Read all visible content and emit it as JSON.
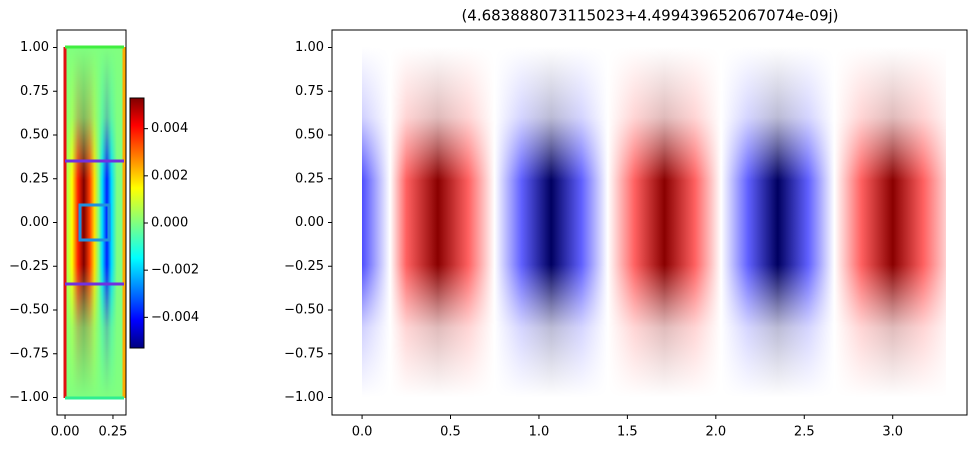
{
  "chart_data": [
    {
      "type": "heatmap",
      "xlim": [
        -0.042,
        0.318
      ],
      "ylim": [
        -1.1,
        1.1
      ],
      "xticks": [
        {
          "value": 0,
          "label": "0.00"
        },
        {
          "value": 0.25,
          "label": "0.25"
        }
      ],
      "yticks": [
        {
          "value": -1,
          "label": "−1.00"
        },
        {
          "value": -0.75,
          "label": "−0.75"
        },
        {
          "value": -0.5,
          "label": "−0.50"
        },
        {
          "value": -0.25,
          "label": "−0.25"
        },
        {
          "value": 0,
          "label": "0.00"
        },
        {
          "value": 0.25,
          "label": "0.25"
        },
        {
          "value": 0.5,
          "label": "0.50"
        },
        {
          "value": 0.75,
          "label": "0.75"
        },
        {
          "value": 1,
          "label": "1.00"
        }
      ],
      "colorbar": {
        "lim": [
          -0.0053,
          0.0053
        ],
        "ticks": [
          {
            "value": -0.004,
            "label": "−0.004"
          },
          {
            "value": -0.002,
            "label": "−0.002"
          },
          {
            "value": 0,
            "label": "0.000"
          },
          {
            "value": 0.002,
            "label": "0.002"
          },
          {
            "value": 0.004,
            "label": "0.004"
          }
        ]
      }
    },
    {
      "type": "heatmap",
      "title": "(4.683888073115023+4.499439652067074e-09j)",
      "xlim": [
        -0.17,
        3.42
      ],
      "ylim": [
        -1.1,
        1.1
      ],
      "xticks": [
        {
          "value": 0,
          "label": "0.0"
        },
        {
          "value": 0.5,
          "label": "0.5"
        },
        {
          "value": 1,
          "label": "1.0"
        },
        {
          "value": 1.5,
          "label": "1.5"
        },
        {
          "value": 2,
          "label": "2.0"
        },
        {
          "value": 2.5,
          "label": "2.5"
        },
        {
          "value": 3,
          "label": "3.0"
        }
      ],
      "yticks": [
        {
          "value": -1,
          "label": "−1.00"
        },
        {
          "value": -0.75,
          "label": "−0.75"
        },
        {
          "value": -0.5,
          "label": "−0.50"
        },
        {
          "value": -0.25,
          "label": "−0.25"
        },
        {
          "value": 0,
          "label": "0.00"
        },
        {
          "value": 0.25,
          "label": "0.25"
        },
        {
          "value": 0.5,
          "label": "0.50"
        },
        {
          "value": 0.75,
          "label": "0.75"
        },
        {
          "value": 1,
          "label": "1.00"
        }
      ]
    }
  ]
}
